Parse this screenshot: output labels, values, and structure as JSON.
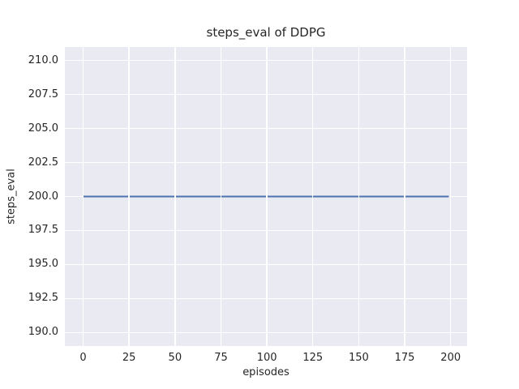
{
  "chart_data": {
    "type": "line",
    "title": "steps_eval of DDPG",
    "xlabel": "episodes",
    "ylabel": "steps_eval",
    "xlim": [
      -9.95,
      208.95
    ],
    "ylim": [
      189.0,
      211.0
    ],
    "xticks": {
      "values": [
        0,
        25,
        50,
        75,
        100,
        125,
        150,
        175,
        200
      ],
      "labels": [
        "0",
        "25",
        "50",
        "75",
        "100",
        "125",
        "150",
        "175",
        "200"
      ]
    },
    "yticks": {
      "values": [
        190.0,
        192.5,
        195.0,
        197.5,
        200.0,
        202.5,
        205.0,
        207.5,
        210.0
      ],
      "labels": [
        "190.0",
        "192.5",
        "195.0",
        "197.5",
        "200.0",
        "202.5",
        "205.0",
        "207.5",
        "210.0"
      ]
    },
    "grid": true,
    "legend": "none",
    "series": [
      {
        "name": "steps_eval of DDPG",
        "color": "#4C72B0",
        "x": [
          0,
          199
        ],
        "y": [
          200.0,
          200.0
        ]
      }
    ],
    "style": {
      "plot_background": "#EAEAF2",
      "grid_color": "#FFFFFF",
      "text_color": "#262626",
      "figure_background": "#FFFFFF"
    }
  }
}
